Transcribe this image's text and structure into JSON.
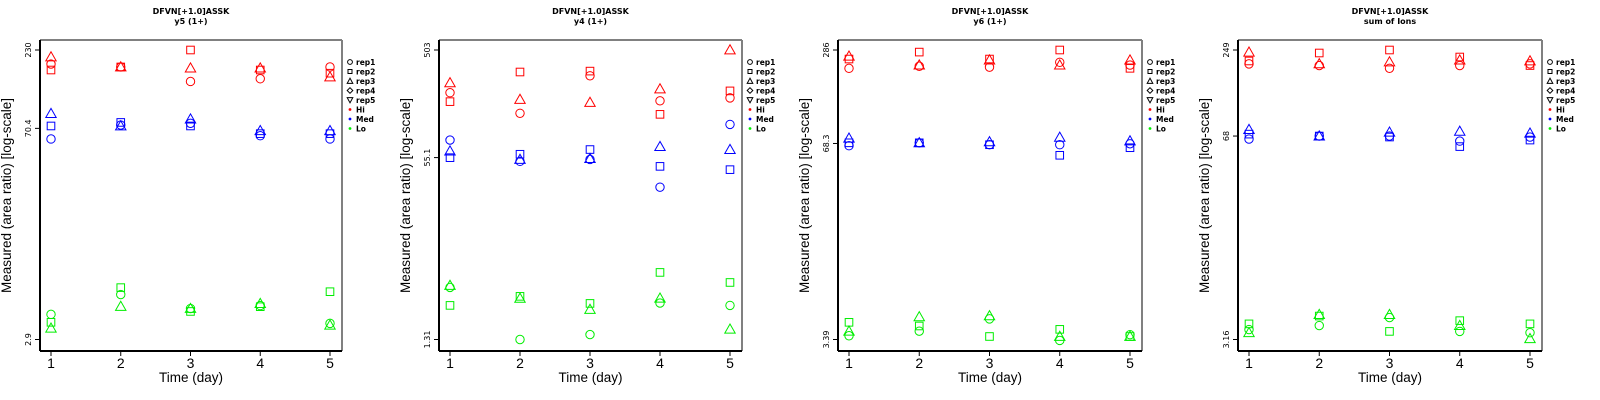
{
  "chart_data": [
    {
      "type": "scatter",
      "title": "DFVN[+1.0]ASSK",
      "subtitle": "y5 (1+)",
      "xlabel": "Time (day)",
      "ylabel": "Measured (area ratio) [log-scale]",
      "yscale": "log",
      "x_ticks": [
        "1",
        "2",
        "3",
        "4",
        "5"
      ],
      "y_ticks": [
        {
          "value": 230,
          "label": "230"
        },
        {
          "value": 70.4,
          "label": "70.4"
        },
        {
          "value": 2.9,
          "label": "2.9"
        }
      ],
      "ylim": [
        2.5,
        265
      ],
      "series": [
        {
          "group": "Hi",
          "rep": "rep1",
          "x": [
            1,
            2,
            3,
            4,
            5
          ],
          "y": [
            186,
            178,
            143,
            149,
            178
          ]
        },
        {
          "group": "Hi",
          "rep": "rep2",
          "x": [
            1,
            2,
            3,
            4,
            5
          ],
          "y": [
            170,
            178,
            230,
            170,
            162
          ]
        },
        {
          "group": "Hi",
          "rep": "rep3",
          "x": [
            1,
            2,
            3,
            4,
            5
          ],
          "y": [
            207,
            178,
            175,
            175,
            153
          ]
        },
        {
          "group": "Med",
          "rep": "rep1",
          "x": [
            1,
            2,
            3,
            4,
            5
          ],
          "y": [
            60,
            74,
            76,
            63,
            60
          ]
        },
        {
          "group": "Med",
          "rep": "rep2",
          "x": [
            1,
            2,
            3,
            4,
            5
          ],
          "y": [
            73,
            77,
            73,
            65,
            65
          ]
        },
        {
          "group": "Med",
          "rep": "rep3",
          "x": [
            1,
            2,
            3,
            4,
            5
          ],
          "y": [
            88,
            73,
            81,
            68,
            68
          ]
        },
        {
          "group": "Lo",
          "rep": "rep1",
          "x": [
            1,
            2,
            3,
            4,
            5
          ],
          "y": [
            4.24,
            5.72,
            4.63,
            4.84,
            3.7
          ]
        },
        {
          "group": "Lo",
          "rep": "rep2",
          "x": [
            1,
            2,
            3,
            4,
            5
          ],
          "y": [
            3.76,
            6.35,
            4.43,
            4.76,
            5.97
          ]
        },
        {
          "group": "Lo",
          "rep": "rep3",
          "x": [
            1,
            2,
            3,
            4,
            5
          ],
          "y": [
            3.44,
            4.78,
            4.63,
            4.99,
            3.6
          ]
        }
      ]
    },
    {
      "type": "scatter",
      "title": "DFVN[+1.0]ASSK",
      "subtitle": "y4 (1+)",
      "xlabel": "Time (day)",
      "ylabel": "Measured (area ratio) [log-scale]",
      "yscale": "log",
      "x_ticks": [
        "1",
        "2",
        "3",
        "4",
        "5"
      ],
      "y_ticks": [
        {
          "value": 503,
          "label": "503"
        },
        {
          "value": 55.1,
          "label": "55.1"
        },
        {
          "value": 1.31,
          "label": "1.31"
        }
      ],
      "ylim": [
        1.1,
        580
      ],
      "series": [
        {
          "group": "Hi",
          "rep": "rep1",
          "x": [
            1,
            2,
            3,
            4,
            5
          ],
          "y": [
            209,
            137,
            296,
            177,
            188
          ]
        },
        {
          "group": "Hi",
          "rep": "rep2",
          "x": [
            1,
            2,
            3,
            4,
            5
          ],
          "y": [
            174,
            320,
            326,
            134,
            217
          ]
        },
        {
          "group": "Hi",
          "rep": "rep3",
          "x": [
            1,
            2,
            3,
            4,
            5
          ],
          "y": [
            256,
            182,
            171,
            226,
            503
          ]
        },
        {
          "group": "Med",
          "rep": "rep1",
          "x": [
            1,
            2,
            3,
            4,
            5
          ],
          "y": [
            79,
            51,
            53,
            30,
            109
          ]
        },
        {
          "group": "Med",
          "rep": "rep2",
          "x": [
            1,
            2,
            3,
            4,
            5
          ],
          "y": [
            55,
            59,
            65,
            46,
            43
          ]
        },
        {
          "group": "Med",
          "rep": "rep3",
          "x": [
            1,
            2,
            3,
            4,
            5
          ],
          "y": [
            63,
            53,
            54,
            69,
            65
          ]
        },
        {
          "group": "Lo",
          "rep": "rep1",
          "x": [
            1,
            2,
            3,
            4,
            5
          ],
          "y": [
            3.82,
            1.31,
            1.45,
            2.77,
            2.64
          ]
        },
        {
          "group": "Lo",
          "rep": "rep2",
          "x": [
            1,
            2,
            3,
            4,
            5
          ],
          "y": [
            2.64,
            3.18,
            2.75,
            5.2,
            4.23
          ]
        },
        {
          "group": "Lo",
          "rep": "rep3",
          "x": [
            1,
            2,
            3,
            4,
            5
          ],
          "y": [
            3.98,
            3.05,
            2.43,
            3.06,
            1.62
          ]
        }
      ]
    },
    {
      "type": "scatter",
      "title": "DFVN[+1.0]ASSK",
      "subtitle": "y6 (1+)",
      "xlabel": "Time (day)",
      "ylabel": "Measured (area ratio) [log-scale]",
      "yscale": "log",
      "x_ticks": [
        "1",
        "2",
        "3",
        "4",
        "5"
      ],
      "y_ticks": [
        {
          "value": 286,
          "label": "286"
        },
        {
          "value": 68.3,
          "label": "68.3"
        },
        {
          "value": 3.39,
          "label": "3.39"
        }
      ],
      "ylim": [
        2.9,
        330
      ],
      "series": [
        {
          "group": "Hi",
          "rep": "rep1",
          "x": [
            1,
            2,
            3,
            4,
            5
          ],
          "y": [
            216,
            223,
            220,
            237,
            227
          ]
        },
        {
          "group": "Hi",
          "rep": "rep2",
          "x": [
            1,
            2,
            3,
            4,
            5
          ],
          "y": [
            249,
            277,
            249,
            286,
            216
          ]
        },
        {
          "group": "Hi",
          "rep": "rep3",
          "x": [
            1,
            2,
            3,
            4,
            5
          ],
          "y": [
            260,
            227,
            245,
            227,
            245
          ]
        },
        {
          "group": "Med",
          "rep": "rep1",
          "x": [
            1,
            2,
            3,
            4,
            5
          ],
          "y": [
            66,
            69,
            67,
            67,
            68
          ]
        },
        {
          "group": "Med",
          "rep": "rep2",
          "x": [
            1,
            2,
            3,
            4,
            5
          ],
          "y": [
            69,
            69,
            67,
            57,
            64
          ]
        },
        {
          "group": "Med",
          "rep": "rep3",
          "x": [
            1,
            2,
            3,
            4,
            5
          ],
          "y": [
            74,
            69,
            70,
            75,
            71
          ]
        },
        {
          "group": "Lo",
          "rep": "rep1",
          "x": [
            1,
            2,
            3,
            4,
            5
          ],
          "y": [
            3.59,
            3.85,
            4.65,
            3.34,
            3.65
          ]
        },
        {
          "group": "Lo",
          "rep": "rep2",
          "x": [
            1,
            2,
            3,
            4,
            5
          ],
          "y": [
            4.41,
            4.17,
            3.55,
            3.96,
            3.55
          ]
        },
        {
          "group": "Lo",
          "rep": "rep3",
          "x": [
            1,
            2,
            3,
            4,
            5
          ],
          "y": [
            3.85,
            4.8,
            4.87,
            3.55,
            3.55
          ]
        }
      ]
    },
    {
      "type": "scatter",
      "title": "DFVN[+1.0]ASSK",
      "subtitle": "sum of Ions",
      "xlabel": "Time (day)",
      "ylabel": "Measured (area ratio) [log-scale]",
      "yscale": "log",
      "x_ticks": [
        "1",
        "2",
        "3",
        "4",
        "5"
      ],
      "y_ticks": [
        {
          "value": 249,
          "label": "249"
        },
        {
          "value": 68,
          "label": "68"
        },
        {
          "value": 3.16,
          "label": "3.16"
        }
      ],
      "ylim": [
        2.7,
        290
      ],
      "series": [
        {
          "group": "Hi",
          "rep": "rep1",
          "x": [
            1,
            2,
            3,
            4,
            5
          ],
          "y": [
            202,
            197,
            189,
            197,
            202
          ]
        },
        {
          "group": "Hi",
          "rep": "rep2",
          "x": [
            1,
            2,
            3,
            4,
            5
          ],
          "y": [
            211,
            238,
            249,
            224,
            197
          ]
        },
        {
          "group": "Hi",
          "rep": "rep3",
          "x": [
            1,
            2,
            3,
            4,
            5
          ],
          "y": [
            241,
            202,
            208,
            214,
            211
          ]
        },
        {
          "group": "Med",
          "rep": "rep1",
          "x": [
            1,
            2,
            3,
            4,
            5
          ],
          "y": [
            65,
            68,
            68,
            63,
            67
          ]
        },
        {
          "group": "Med",
          "rep": "rep2",
          "x": [
            1,
            2,
            3,
            4,
            5
          ],
          "y": [
            70,
            68,
            67,
            58,
            64
          ]
        },
        {
          "group": "Med",
          "rep": "rep3",
          "x": [
            1,
            2,
            3,
            4,
            5
          ],
          "y": [
            75,
            68,
            72,
            73,
            71
          ]
        },
        {
          "group": "Lo",
          "rep": "rep1",
          "x": [
            1,
            2,
            3,
            4,
            5
          ],
          "y": [
            3.67,
            3.9,
            4.4,
            3.57,
            3.5
          ]
        },
        {
          "group": "Lo",
          "rep": "rep2",
          "x": [
            1,
            2,
            3,
            4,
            5
          ],
          "y": [
            4.0,
            4.5,
            3.57,
            4.2,
            4.0
          ]
        },
        {
          "group": "Lo",
          "rep": "rep3",
          "x": [
            1,
            2,
            3,
            4,
            5
          ],
          "y": [
            3.5,
            4.6,
            4.6,
            3.9,
            3.2
          ]
        }
      ]
    }
  ],
  "legend": {
    "position": "right",
    "items": [
      {
        "label": "rep1",
        "symbol": "circle",
        "kind": "rep"
      },
      {
        "label": "rep2",
        "symbol": "square",
        "kind": "rep"
      },
      {
        "label": "rep3",
        "symbol": "triangle-up",
        "kind": "rep"
      },
      {
        "label": "rep4",
        "symbol": "diamond",
        "kind": "rep"
      },
      {
        "label": "rep5",
        "symbol": "triangle-down",
        "kind": "rep"
      },
      {
        "label": "Hi",
        "symbol": "dot",
        "kind": "group"
      },
      {
        "label": "Med",
        "symbol": "dot",
        "kind": "group"
      },
      {
        "label": "Lo",
        "symbol": "dot",
        "kind": "group"
      }
    ]
  },
  "colors": {
    "Hi": "#ff0000",
    "Med": "#0000ff",
    "Lo": "#00ee00",
    "frame_dark": "#000000",
    "frame_light": "#808080"
  },
  "rep_symbols": {
    "rep1": "circle",
    "rep2": "square",
    "rep3": "triangle-up",
    "rep4": "diamond",
    "rep5": "triangle-down"
  }
}
